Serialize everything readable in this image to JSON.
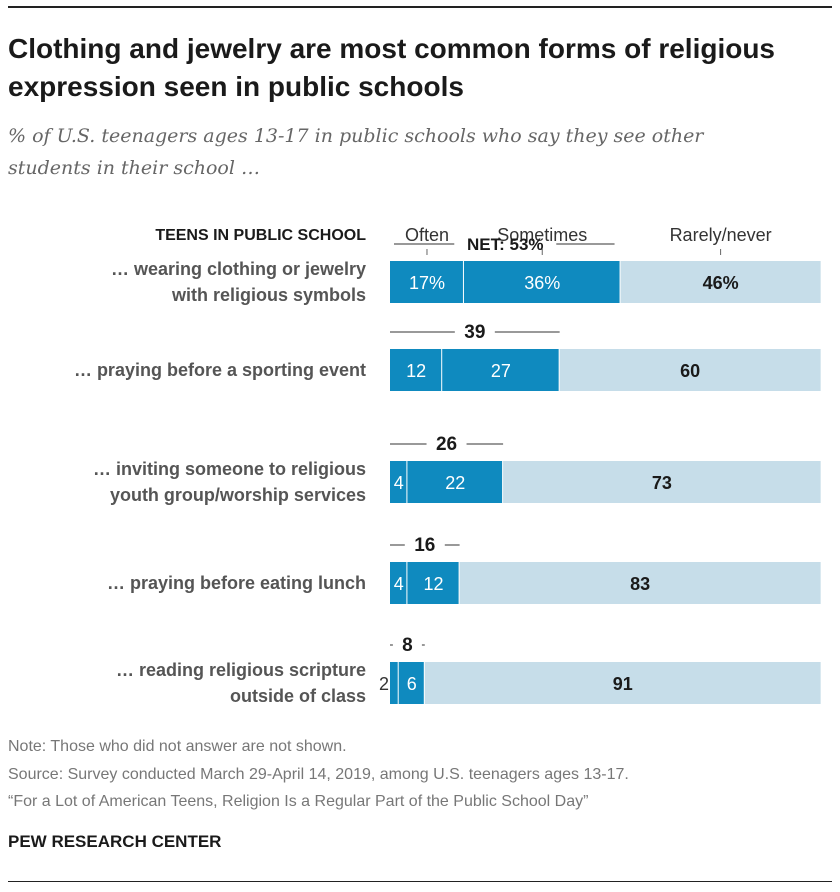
{
  "title": "Clothing and jewelry are most common forms of religious expression seen in public schools",
  "subtitle": "% of U.S. teenagers ages 13-17 in public schools who say they see other students in their school …",
  "notes": {
    "note": "Note: Those who did not answer are not shown.",
    "source": "Source: Survey conducted March 29-April 14, 2019, among U.S. teenagers ages 13-17.",
    "report": "“For a Lot of American Teens, Religion Is a Regular Part of the Public School Day”"
  },
  "brand": "PEW RESEARCH CENTER",
  "colors": {
    "often": "#0f8abf",
    "sometimes": "#0f8abf",
    "rarely": "#c6dde9",
    "divider": "#ffffff"
  },
  "chart_data": {
    "type": "bar",
    "orientation": "horizontal",
    "stacked": true,
    "row_header": "TEENS IN PUBLIC SCHOOL",
    "series_labels": [
      "Often",
      "Sometimes",
      "Rarely/never"
    ],
    "categories": [
      [
        "… wearing clothing or jewelry",
        "with religious symbols"
      ],
      [
        "… praying before a sporting event"
      ],
      [
        "… inviting someone to religious",
        "youth group/worship services"
      ],
      [
        "… praying before eating lunch"
      ],
      [
        "… reading religious scripture",
        "outside of class"
      ]
    ],
    "series": [
      {
        "name": "Often",
        "values": [
          17,
          12,
          4,
          4,
          2
        ],
        "labels": [
          "17%",
          "12",
          "4",
          "4",
          "2"
        ]
      },
      {
        "name": "Sometimes",
        "values": [
          36,
          27,
          22,
          12,
          6
        ],
        "labels": [
          "36%",
          "27",
          "22",
          "12",
          "6"
        ]
      },
      {
        "name": "Rarely/never",
        "values": [
          46,
          60,
          73,
          83,
          91
        ],
        "labels": [
          "46%",
          "60",
          "73",
          "83",
          "91"
        ]
      }
    ],
    "net": {
      "values": [
        53,
        39,
        26,
        16,
        8
      ],
      "labels": [
        "NET: 53%",
        "39",
        "26",
        "16",
        "8"
      ]
    },
    "xlim": [
      0,
      100
    ]
  }
}
